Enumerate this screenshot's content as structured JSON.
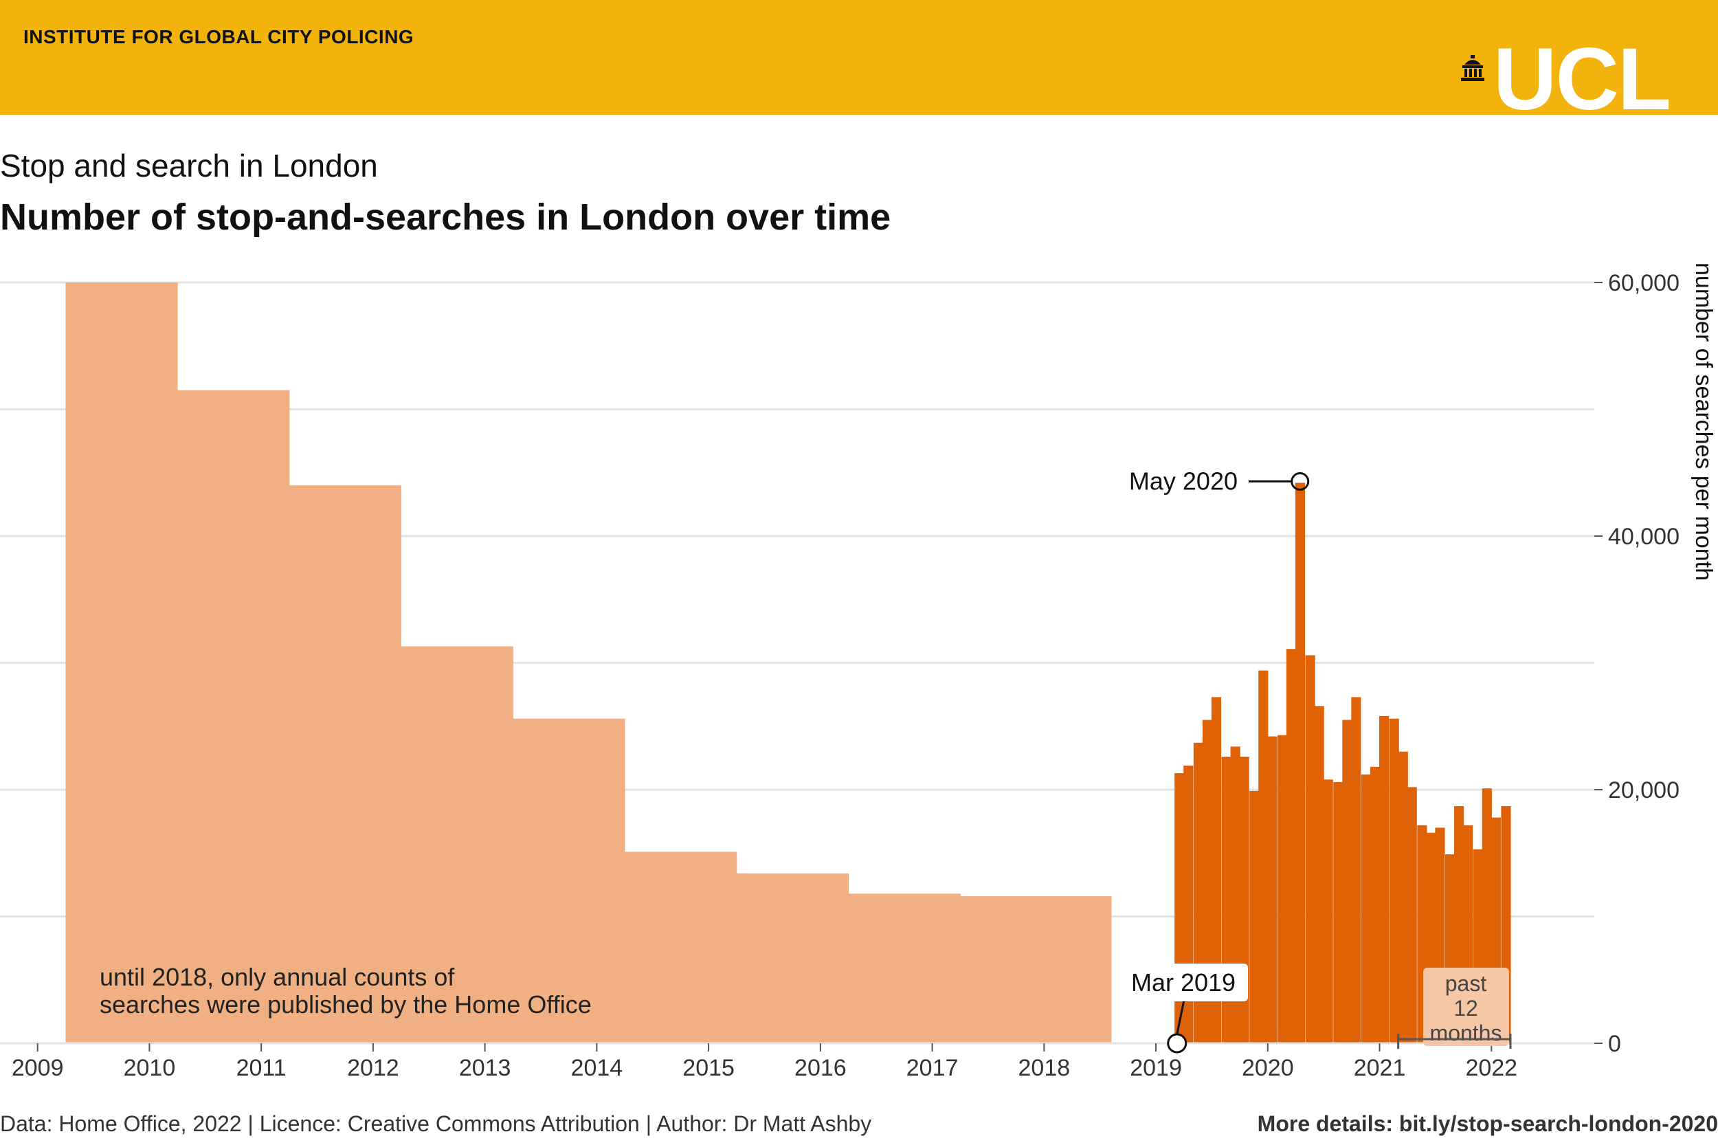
{
  "header": {
    "institute": "INSTITUTE FOR GLOBAL CITY POLICING",
    "logo_text": "UCL",
    "logo_icon": "building-icon",
    "background_color": "#F2B30D"
  },
  "subtitle": "Stop and search in London",
  "footer": {
    "left": "Data: Home Office, 2022 | Licence: Creative Commons Attribution | Author: Dr Matt Ashby",
    "right": "More details: bit.ly/stop-search-london-2020"
  },
  "chart_data": {
    "type": "bar",
    "title": "Number of stop-and-searches in London over time",
    "ylabel": "number of searches per month",
    "xlabel": "",
    "ylim": [
      0,
      60000
    ],
    "xlim": [
      2008.75,
      2022.92
    ],
    "y_ticks": [
      0,
      20000,
      40000,
      60000
    ],
    "y_tick_labels": [
      "0",
      "20,000",
      "40,000",
      "60,000"
    ],
    "x_ticks": [
      2009,
      2010,
      2011,
      2012,
      2013,
      2014,
      2015,
      2016,
      2017,
      2018,
      2019,
      2020,
      2021,
      2022
    ],
    "grid": true,
    "y_axis_side": "right",
    "colors": {
      "annual": "#F0B083",
      "monthly": "#E06207",
      "grid": "#e3e3e3"
    },
    "series": [
      {
        "kind": "annual-average",
        "x_start": [
          2009.25,
          2010.25,
          2011.25,
          2012.25,
          2013.25,
          2014.25,
          2015.25,
          2016.25,
          2017.25
        ],
        "x_end": [
          2010.25,
          2011.25,
          2012.25,
          2013.25,
          2014.25,
          2015.25,
          2016.25,
          2017.25,
          2018.6
        ],
        "values": [
          60000,
          51500,
          44000,
          31300,
          25600,
          15100,
          13400,
          11800,
          11600
        ]
      },
      {
        "kind": "monthly",
        "x": [
          2019.25,
          2019.33,
          2019.42,
          2019.5,
          2019.58,
          2019.67,
          2019.75,
          2019.83,
          2019.92,
          2020.0,
          2020.08,
          2020.17,
          2020.25,
          2020.33,
          2020.42,
          2020.5,
          2020.58,
          2020.67,
          2020.75,
          2020.83,
          2020.92,
          2021.0,
          2021.08,
          2021.17,
          2021.25,
          2021.33,
          2021.42,
          2021.5,
          2021.58,
          2021.67,
          2021.75,
          2021.83,
          2021.92,
          2022.0,
          2022.08,
          2022.17
        ],
        "values": [
          21300,
          21900,
          23700,
          25500,
          27300,
          22600,
          23400,
          22600,
          19900,
          29400,
          24200,
          24300,
          31100,
          44200,
          30600,
          26600,
          20800,
          20600,
          25500,
          27300,
          21200,
          21800,
          25800,
          25600,
          23000,
          20200,
          17200,
          16600,
          17000,
          14900,
          18700,
          17200,
          15300,
          20100,
          17800,
          18700
        ]
      }
    ],
    "annotations": [
      {
        "label": "May 2020",
        "x": 2020.33,
        "y": 44200
      },
      {
        "label": "Mar 2019",
        "x": 2019.17,
        "y": 0
      }
    ],
    "note": [
      "until 2018, only annual counts of",
      "searches were published by the Home Office"
    ],
    "period_label": [
      "past",
      "12",
      "months"
    ]
  }
}
